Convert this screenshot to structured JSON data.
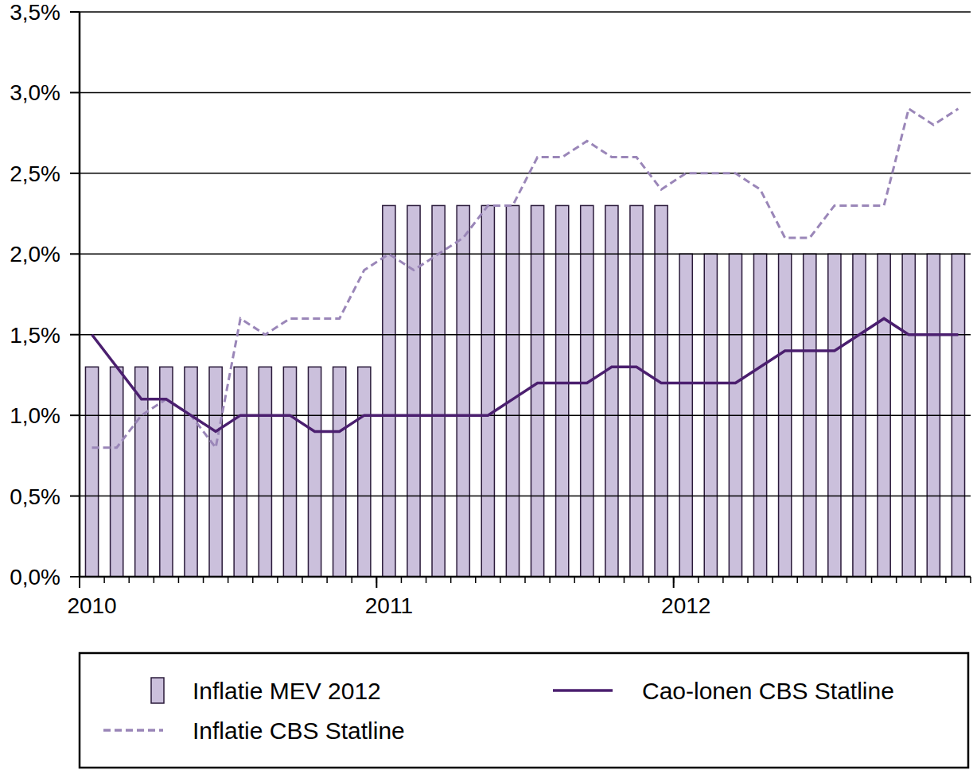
{
  "chart_data": {
    "type": "bar",
    "categories": [
      "2010",
      null,
      null,
      null,
      null,
      null,
      null,
      null,
      null,
      null,
      null,
      null,
      "2011",
      null,
      null,
      null,
      null,
      null,
      null,
      null,
      null,
      null,
      null,
      null,
      "2012",
      null,
      null,
      null,
      null,
      null,
      null,
      null,
      null,
      null,
      null,
      null
    ],
    "series": [
      {
        "name": "Inflatie MEV 2012",
        "type": "bar",
        "color": "#cbc0dc",
        "values": [
          1.3,
          1.3,
          1.3,
          1.3,
          1.3,
          1.3,
          1.3,
          1.3,
          1.3,
          1.3,
          1.3,
          1.3,
          2.3,
          2.3,
          2.3,
          2.3,
          2.3,
          2.3,
          2.3,
          2.3,
          2.3,
          2.3,
          2.3,
          2.3,
          2.0,
          2.0,
          2.0,
          2.0,
          2.0,
          2.0,
          2.0,
          2.0,
          2.0,
          2.0,
          2.0,
          2.0
        ]
      },
      {
        "name": "Inflatie CBS Statline",
        "type": "line",
        "line_style": "dashed",
        "color": "#9a86b8",
        "values": [
          0.8,
          0.8,
          1.0,
          1.1,
          1.0,
          0.8,
          1.6,
          1.5,
          1.6,
          1.6,
          1.6,
          1.9,
          2.0,
          1.9,
          2.0,
          2.1,
          2.3,
          2.3,
          2.6,
          2.6,
          2.7,
          2.6,
          2.6,
          2.4,
          2.5,
          2.5,
          2.5,
          2.4,
          2.1,
          2.1,
          2.3,
          2.3,
          2.3,
          2.9,
          2.8,
          2.9
        ]
      },
      {
        "name": "Cao-lonen CBS Statline",
        "type": "line",
        "line_style": "solid",
        "color": "#4b1f6f",
        "values": [
          1.5,
          1.3,
          1.1,
          1.1,
          1.0,
          0.9,
          1.0,
          1.0,
          1.0,
          0.9,
          0.9,
          1.0,
          1.0,
          1.0,
          1.0,
          1.0,
          1.0,
          1.1,
          1.2,
          1.2,
          1.2,
          1.3,
          1.3,
          1.2,
          1.2,
          1.2,
          1.2,
          1.3,
          1.4,
          1.4,
          1.4,
          1.5,
          1.6,
          1.5,
          1.5,
          1.5
        ]
      }
    ],
    "ylim": [
      0,
      3.5
    ],
    "yticks": [
      {
        "value": 0,
        "label": "0,0%"
      },
      {
        "value": 0.5,
        "label": "0,5%"
      },
      {
        "value": 1,
        "label": "1,0%"
      },
      {
        "value": 1.5,
        "label": "1,5%"
      },
      {
        "value": 2,
        "label": "2,0%"
      },
      {
        "value": 2.5,
        "label": "2,5%"
      },
      {
        "value": 3,
        "label": "3,0%"
      },
      {
        "value": 3.5,
        "label": "3,5%"
      }
    ],
    "grid": true,
    "legend": "bottom"
  }
}
